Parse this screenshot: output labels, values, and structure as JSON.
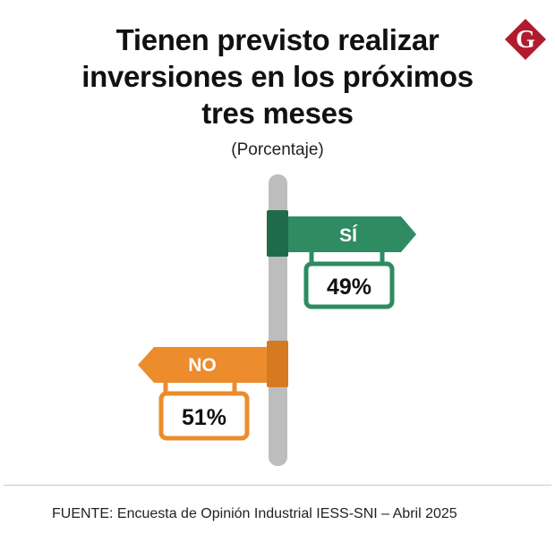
{
  "header": {
    "title": "Tienen previsto realizar inversiones en los próximos tres meses",
    "subtitle": "(Porcentaje)"
  },
  "logo": {
    "letter": "G",
    "color": "#b01c2e",
    "icon": "g-diamond-logo-icon"
  },
  "colors": {
    "si": "#2e8b62",
    "si_dark": "#1f6a48",
    "no": "#ec8c2c",
    "no_dark": "#d67a22",
    "pole": "#bdbdbd"
  },
  "chart_data": {
    "type": "bar",
    "categories": [
      "SÍ",
      "NO"
    ],
    "values": [
      49,
      51
    ],
    "value_labels": [
      "49%",
      "51%"
    ],
    "unit": "%"
  },
  "footer": {
    "source": "FUENTE: Encuesta de Opinión Industrial IESS-SNI – Abril 2025"
  }
}
